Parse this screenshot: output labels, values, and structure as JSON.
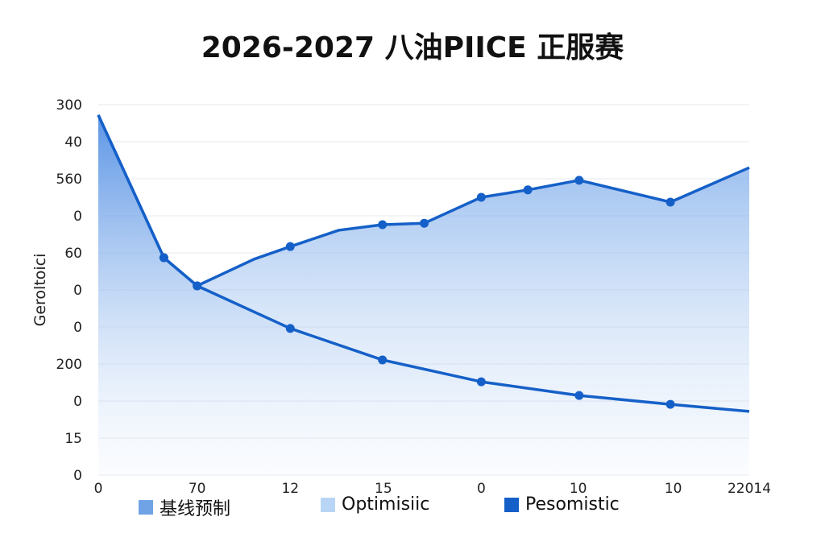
{
  "chart_data": {
    "type": "area",
    "title": "2026-2027 八油PIICE 正服赛",
    "ylabel": "Geroltoici",
    "xlabel": "",
    "x_ticks": [
      {
        "v": 0,
        "label": "0"
      },
      {
        "v": 1.04,
        "label": "70"
      },
      {
        "v": 2.02,
        "label": "12"
      },
      {
        "v": 3.0,
        "label": "15"
      },
      {
        "v": 4.03,
        "label": "0"
      },
      {
        "v": 5.05,
        "label": "10"
      },
      {
        "v": 6.05,
        "label": "10"
      },
      {
        "v": 6.85,
        "label": "22014"
      }
    ],
    "y_ticks": [
      {
        "v": 10,
        "label": "300"
      },
      {
        "v": 9,
        "label": "40"
      },
      {
        "v": 8,
        "label": "560"
      },
      {
        "v": 7,
        "label": "0"
      },
      {
        "v": 6,
        "label": "60"
      },
      {
        "v": 5,
        "label": "0"
      },
      {
        "v": 4,
        "label": "0"
      },
      {
        "v": 3,
        "label": "200"
      },
      {
        "v": 2,
        "label": "0"
      },
      {
        "v": 1,
        "label": "15"
      },
      {
        "v": 0,
        "label": "0"
      }
    ],
    "xlim": [
      0,
      6.85
    ],
    "ylim": [
      0,
      10
    ],
    "grid": true,
    "legend_placement": "bottom",
    "series": [
      {
        "name": "基线预制",
        "color": "#6fa3e6",
        "points": [
          [
            0,
            9.72
          ],
          [
            0.69,
            5.87
          ],
          [
            1.04,
            5.11
          ],
          [
            1.64,
            5.83
          ],
          [
            2.02,
            6.17
          ],
          [
            2.53,
            6.61
          ],
          [
            2.99,
            6.76
          ],
          [
            3.43,
            6.8
          ],
          [
            4.03,
            7.5
          ],
          [
            4.52,
            7.7
          ],
          [
            5.06,
            7.96
          ],
          [
            6.02,
            7.37
          ],
          [
            6.85,
            8.3
          ]
        ],
        "markers": [
          1,
          2,
          4,
          6,
          7,
          8,
          9,
          10,
          11
        ]
      },
      {
        "name": "Optimisiic",
        "color": "#b9d5f5",
        "points": []
      },
      {
        "name": "Pesomistic",
        "color": "#1560c8",
        "points": [
          [
            0,
            9.72
          ],
          [
            0.69,
            5.87
          ],
          [
            1.04,
            5.11
          ],
          [
            2.02,
            3.96
          ],
          [
            2.99,
            3.11
          ],
          [
            4.03,
            2.52
          ],
          [
            5.06,
            2.15
          ],
          [
            6.02,
            1.91
          ],
          [
            6.85,
            1.72
          ]
        ],
        "markers": [
          1,
          2,
          3,
          4,
          5,
          6,
          7
        ]
      }
    ]
  }
}
